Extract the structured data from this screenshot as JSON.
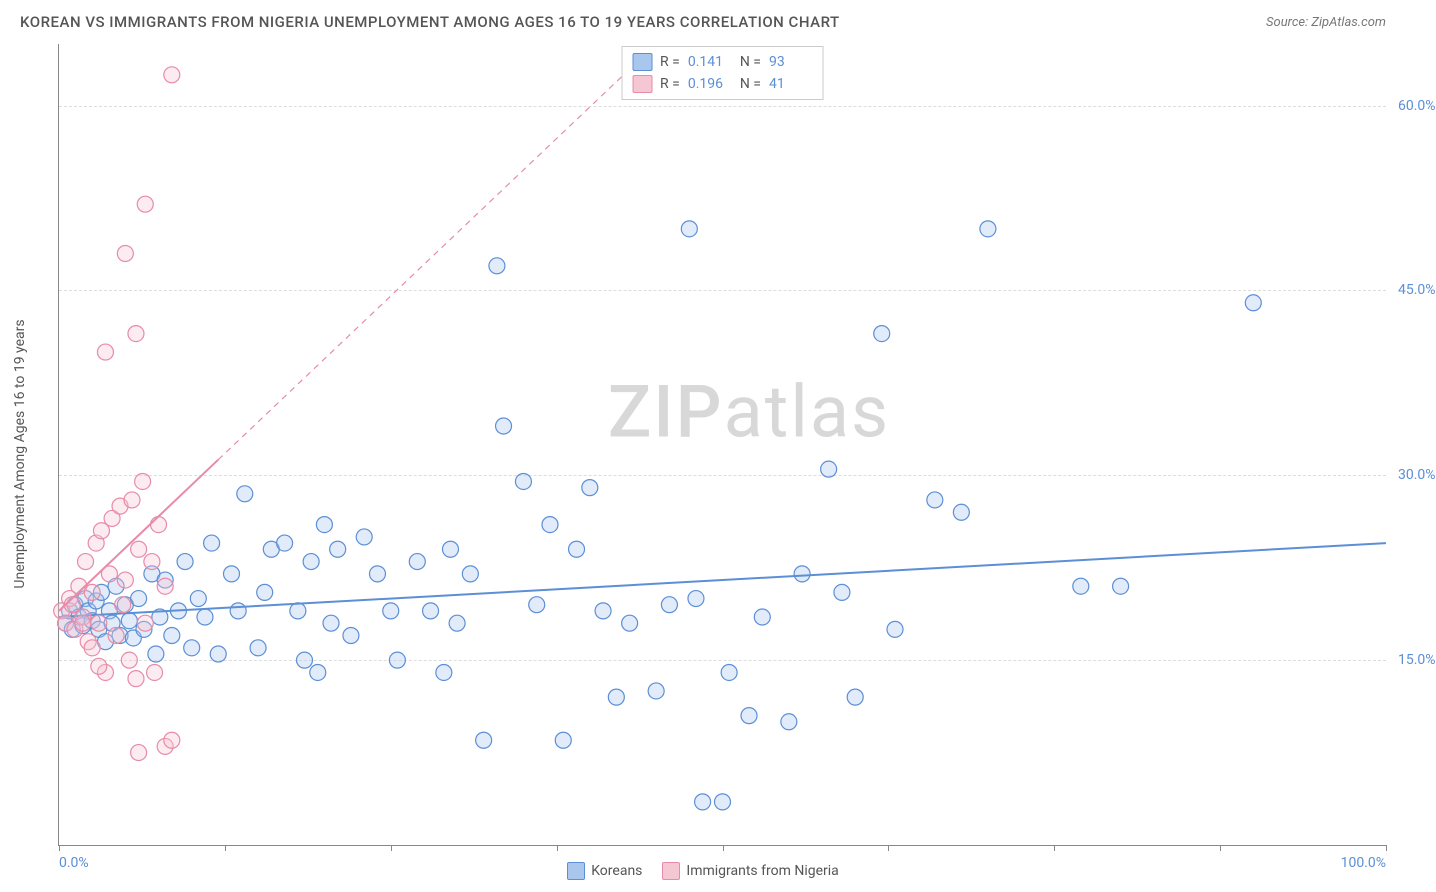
{
  "header": {
    "title": "KOREAN VS IMMIGRANTS FROM NIGERIA UNEMPLOYMENT AMONG AGES 16 TO 19 YEARS CORRELATION CHART",
    "source": "Source: ZipAtlas.com"
  },
  "watermark": "ZIPatlas",
  "chart": {
    "type": "scatter",
    "ylabel": "Unemployment Among Ages 16 to 19 years",
    "xlim": [
      0,
      100
    ],
    "ylim": [
      0,
      65
    ],
    "ytick_vals": [
      15,
      30,
      45,
      60
    ],
    "ytick_labels": [
      "15.0%",
      "30.0%",
      "45.0%",
      "60.0%"
    ],
    "xtick_vals": [
      0,
      12.5,
      25,
      37.5,
      50,
      62.5,
      75,
      87.5,
      100
    ],
    "xtick_labels_shown": {
      "0": "0.0%",
      "100": "100.0%"
    },
    "grid_color": "#dddddd",
    "axis_color": "#888888",
    "background_color": "#ffffff",
    "tick_label_color": "#5b8fd6",
    "marker_radius": 8,
    "series": [
      {
        "key": "koreans",
        "label": "Koreans",
        "color_fill": "#a9c7ed",
        "color_stroke": "#5b8fd6",
        "r_label": "R = ",
        "r_value": "0.141",
        "n_label": "N = ",
        "n_value": "93",
        "trend": {
          "x1": 0,
          "y1": 18.5,
          "x2": 100,
          "y2": 24.5,
          "solid_to_x": 100
        },
        "points": [
          [
            0.5,
            18
          ],
          [
            0.8,
            19
          ],
          [
            1,
            17.5
          ],
          [
            1.2,
            19.5
          ],
          [
            1.5,
            18.5
          ],
          [
            1.8,
            17.8
          ],
          [
            2,
            20
          ],
          [
            2.2,
            19
          ],
          [
            2.5,
            18.2
          ],
          [
            2.8,
            19.8
          ],
          [
            3,
            17.5
          ],
          [
            3.2,
            20.5
          ],
          [
            3.5,
            16.5
          ],
          [
            3.8,
            19
          ],
          [
            4,
            18
          ],
          [
            4.3,
            21
          ],
          [
            4.6,
            17
          ],
          [
            5,
            19.5
          ],
          [
            5.3,
            18.2
          ],
          [
            5.6,
            16.8
          ],
          [
            6,
            20
          ],
          [
            6.4,
            17.5
          ],
          [
            7,
            22
          ],
          [
            7.3,
            15.5
          ],
          [
            7.6,
            18.5
          ],
          [
            8,
            21.5
          ],
          [
            8.5,
            17
          ],
          [
            9,
            19
          ],
          [
            9.5,
            23
          ],
          [
            10,
            16
          ],
          [
            10.5,
            20
          ],
          [
            11,
            18.5
          ],
          [
            11.5,
            24.5
          ],
          [
            12,
            15.5
          ],
          [
            13,
            22
          ],
          [
            13.5,
            19
          ],
          [
            14,
            28.5
          ],
          [
            15,
            16
          ],
          [
            15.5,
            20.5
          ],
          [
            16,
            24
          ],
          [
            17,
            24.5
          ],
          [
            18,
            19
          ],
          [
            18.5,
            15
          ],
          [
            19,
            23
          ],
          [
            19.5,
            14
          ],
          [
            20,
            26
          ],
          [
            20.5,
            18
          ],
          [
            21,
            24
          ],
          [
            22,
            17
          ],
          [
            23,
            25
          ],
          [
            24,
            22
          ],
          [
            25,
            19
          ],
          [
            25.5,
            15
          ],
          [
            27,
            23
          ],
          [
            28,
            19
          ],
          [
            29,
            14
          ],
          [
            29.5,
            24
          ],
          [
            30,
            18
          ],
          [
            31,
            22
          ],
          [
            32,
            8.5
          ],
          [
            33,
            47
          ],
          [
            35,
            29.5
          ],
          [
            36,
            19.5
          ],
          [
            37,
            26
          ],
          [
            38,
            8.5
          ],
          [
            39,
            24
          ],
          [
            40,
            29
          ],
          [
            41,
            19
          ],
          [
            42,
            12
          ],
          [
            43,
            18
          ],
          [
            45,
            12.5
          ],
          [
            46,
            19.5
          ],
          [
            47.5,
            50
          ],
          [
            48,
            20
          ],
          [
            48.5,
            3.5
          ],
          [
            50,
            3.5
          ],
          [
            50.5,
            14
          ],
          [
            52,
            10.5
          ],
          [
            53,
            18.5
          ],
          [
            55,
            10
          ],
          [
            56,
            22
          ],
          [
            58,
            30.5
          ],
          [
            59,
            20.5
          ],
          [
            60,
            12
          ],
          [
            62,
            41.5
          ],
          [
            63,
            17.5
          ],
          [
            66,
            28
          ],
          [
            68,
            27
          ],
          [
            70,
            50
          ],
          [
            77,
            21
          ],
          [
            80,
            21
          ],
          [
            90,
            44
          ],
          [
            33.5,
            34
          ]
        ]
      },
      {
        "key": "nigeria",
        "label": "Immigrants from Nigeria",
        "color_fill": "#f5c6d3",
        "color_stroke": "#e88ba8",
        "r_label": "R = ",
        "r_value": "0.196",
        "n_label": "N = ",
        "n_value": "41",
        "trend": {
          "x1": 0,
          "y1": 19,
          "x2": 45,
          "y2": 65,
          "solid_to_x": 12
        },
        "points": [
          [
            0.2,
            19
          ],
          [
            0.5,
            18
          ],
          [
            0.8,
            20
          ],
          [
            1,
            19.5
          ],
          [
            1.2,
            17.5
          ],
          [
            1.5,
            21
          ],
          [
            1.8,
            18.5
          ],
          [
            2,
            23
          ],
          [
            2.2,
            16.5
          ],
          [
            2.5,
            20.5
          ],
          [
            2.8,
            24.5
          ],
          [
            3,
            18
          ],
          [
            3.2,
            25.5
          ],
          [
            3.5,
            14
          ],
          [
            3.8,
            22
          ],
          [
            4,
            26.5
          ],
          [
            4.3,
            17
          ],
          [
            4.6,
            27.5
          ],
          [
            5,
            21.5
          ],
          [
            5.3,
            15
          ],
          [
            5.5,
            28
          ],
          [
            5.8,
            13.5
          ],
          [
            6,
            24
          ],
          [
            6.3,
            29.5
          ],
          [
            6.5,
            18
          ],
          [
            7,
            23
          ],
          [
            7.5,
            26
          ],
          [
            8,
            21
          ],
          [
            5,
            48
          ],
          [
            8.5,
            62.5
          ],
          [
            6.5,
            52
          ],
          [
            7.2,
            14
          ],
          [
            8,
            8
          ],
          [
            8.5,
            8.5
          ],
          [
            3.5,
            40
          ],
          [
            5.8,
            41.5
          ],
          [
            6,
            7.5
          ],
          [
            2.5,
            16
          ],
          [
            3,
            14.5
          ],
          [
            4.8,
            19.5
          ],
          [
            1.8,
            18
          ]
        ]
      }
    ]
  },
  "top_legend": {
    "rows": [
      {
        "series_key": "koreans"
      },
      {
        "series_key": "nigeria"
      }
    ]
  },
  "footer_legend": {
    "items": [
      {
        "series_key": "koreans"
      },
      {
        "series_key": "nigeria"
      }
    ]
  }
}
